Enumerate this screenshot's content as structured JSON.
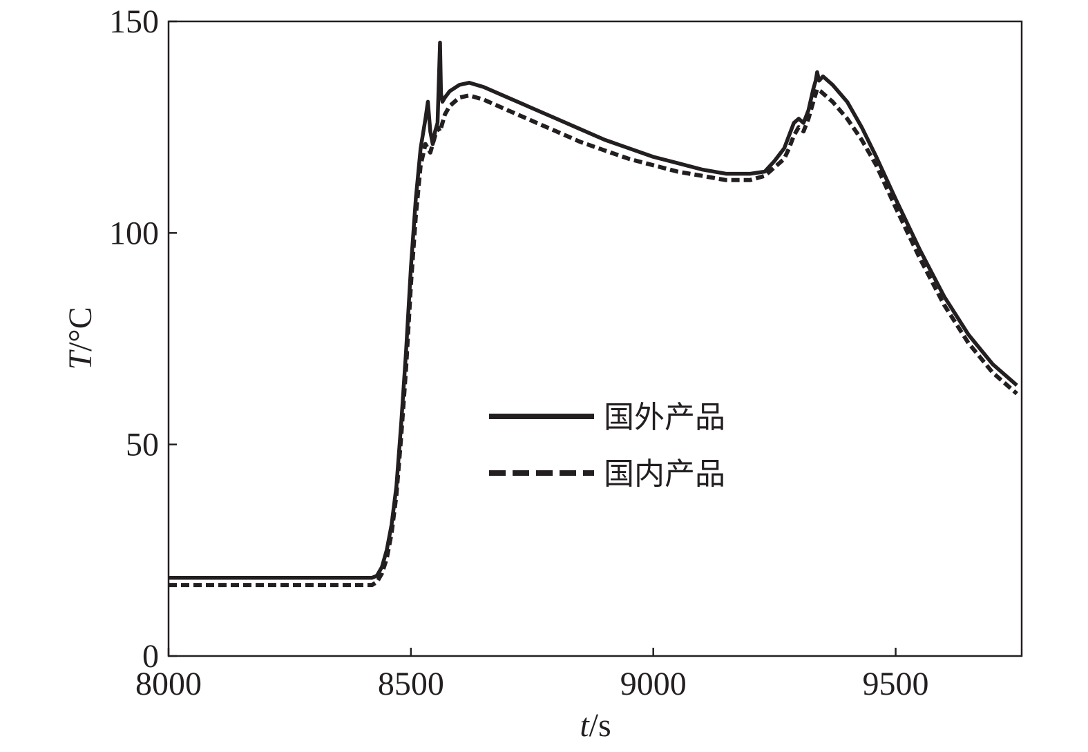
{
  "chart_data": {
    "type": "line",
    "xlabel": {
      "italic": "t",
      "unit": "/s"
    },
    "ylabel": {
      "italic": "T",
      "unit": "/°C"
    },
    "xlim": [
      8000,
      9760
    ],
    "ylim": [
      0,
      150
    ],
    "xticks": [
      8000,
      8500,
      9000,
      9500
    ],
    "yticks": [
      0,
      50,
      100,
      150
    ],
    "xtick_labels": [
      "8000",
      "8500",
      "9000",
      "9500"
    ],
    "ytick_labels": [
      "0",
      "50",
      "100",
      "150"
    ],
    "grid": false,
    "legend_position": "center",
    "series": [
      {
        "name": "国外产品",
        "style": "solid",
        "color": "#231f20",
        "x": [
          8000,
          8100,
          8200,
          8300,
          8400,
          8420,
          8430,
          8440,
          8450,
          8460,
          8470,
          8480,
          8490,
          8500,
          8510,
          8520,
          8530,
          8535,
          8540,
          8545,
          8550,
          8555,
          8560,
          8562,
          8565,
          8570,
          8580,
          8600,
          8620,
          8650,
          8700,
          8750,
          8800,
          8850,
          8900,
          8950,
          9000,
          9050,
          9100,
          9150,
          9200,
          9230,
          9250,
          9270,
          9280,
          9290,
          9300,
          9310,
          9320,
          9330,
          9335,
          9338,
          9342,
          9350,
          9370,
          9400,
          9430,
          9460,
          9500,
          9550,
          9600,
          9650,
          9700,
          9750
        ],
        "y": [
          18.5,
          18.5,
          18.5,
          18.5,
          18.5,
          18.5,
          19,
          21,
          25,
          31,
          40,
          55,
          72,
          92,
          108,
          120,
          127,
          131,
          124,
          121,
          124,
          126,
          145,
          133,
          131,
          132,
          133.5,
          135,
          135.5,
          134.5,
          132,
          129.5,
          127,
          124.5,
          122,
          120,
          118,
          116.5,
          115,
          114,
          114,
          114.5,
          117,
          120,
          123,
          126,
          127,
          126,
          129,
          134,
          136,
          138,
          136,
          137,
          135,
          131,
          125,
          118,
          108,
          96,
          85,
          76,
          69,
          64
        ]
      },
      {
        "name": "国内产品",
        "style": "dashed",
        "color": "#231f20",
        "x": [
          8000,
          8100,
          8200,
          8300,
          8400,
          8420,
          8430,
          8440,
          8450,
          8460,
          8470,
          8480,
          8490,
          8500,
          8510,
          8520,
          8530,
          8540,
          8545,
          8550,
          8555,
          8560,
          8565,
          8570,
          8580,
          8600,
          8620,
          8650,
          8700,
          8750,
          8800,
          8850,
          8900,
          8950,
          9000,
          9050,
          9100,
          9150,
          9200,
          9230,
          9250,
          9270,
          9280,
          9290,
          9300,
          9310,
          9320,
          9330,
          9338,
          9345,
          9350,
          9370,
          9400,
          9430,
          9460,
          9500,
          9550,
          9600,
          9650,
          9700,
          9750
        ],
        "y": [
          16.8,
          16.8,
          16.8,
          16.8,
          16.8,
          16.8,
          17.5,
          19.5,
          23,
          29,
          38,
          52,
          68,
          88,
          104,
          116,
          121,
          119,
          121,
          123,
          125,
          124,
          126,
          128,
          130,
          132,
          132.5,
          131.5,
          129,
          126.5,
          124,
          121.5,
          119.5,
          117.5,
          116,
          114.5,
          113.5,
          112.5,
          112.5,
          113.5,
          115.5,
          117.5,
          120,
          123,
          125,
          124,
          127,
          131,
          134,
          133.5,
          133,
          131,
          127,
          122,
          116,
          106,
          94,
          83,
          74,
          67,
          62
        ]
      }
    ]
  }
}
